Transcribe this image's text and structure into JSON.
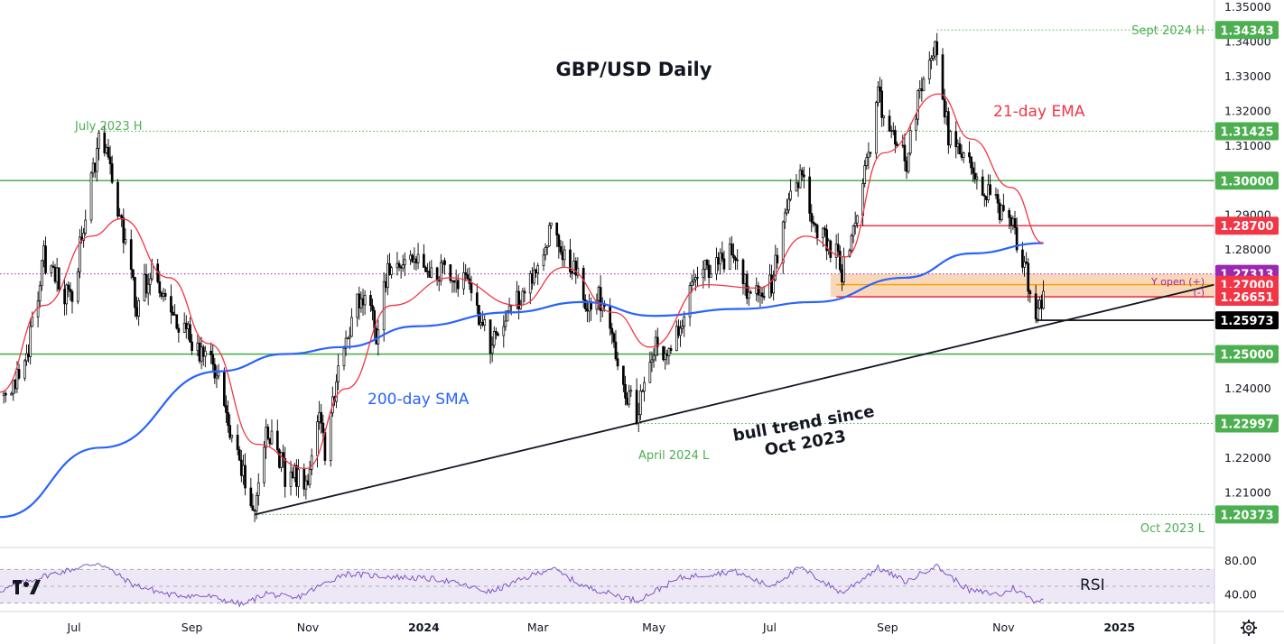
{
  "chart_data": {
    "type": "candlestick",
    "title": "GBP/USD Daily",
    "ylim": [
      1.195,
      1.35
    ],
    "y_ticks": [
      {
        "value": 1.35,
        "label": "1.35000"
      },
      {
        "value": 1.34,
        "label": "1.34000"
      },
      {
        "value": 1.33,
        "label": "1.33000"
      },
      {
        "value": 1.32,
        "label": "1.32000"
      },
      {
        "value": 1.31,
        "label": "1.31000"
      },
      {
        "value": 1.29,
        "label": "1.29000"
      },
      {
        "value": 1.28,
        "label": "1.28000"
      },
      {
        "value": 1.24,
        "label": "1.24000"
      },
      {
        "value": 1.22,
        "label": "1.22000"
      },
      {
        "value": 1.21,
        "label": "1.21000"
      }
    ],
    "x_ticks": [
      {
        "date": "2023-07-01",
        "label": "Jul",
        "bold": false
      },
      {
        "date": "2023-09-01",
        "label": "Sep",
        "bold": false
      },
      {
        "date": "2023-11-01",
        "label": "Nov",
        "bold": false
      },
      {
        "date": "2024-01-01",
        "label": "2024",
        "bold": true
      },
      {
        "date": "2024-03-01",
        "label": "Mar",
        "bold": false
      },
      {
        "date": "2024-05-01",
        "label": "May",
        "bold": false
      },
      {
        "date": "2024-07-01",
        "label": "Jul",
        "bold": false
      },
      {
        "date": "2024-09-01",
        "label": "Sep",
        "bold": false
      },
      {
        "date": "2024-11-01",
        "label": "Nov",
        "bold": false
      },
      {
        "date": "2025-01-01",
        "label": "2025",
        "bold": true
      }
    ],
    "x_range": [
      "2023-05-23",
      "2025-02-20"
    ],
    "key_points": [
      {
        "date": "2023-05-25",
        "close": 1.238
      },
      {
        "date": "2023-06-05",
        "close": 1.246
      },
      {
        "date": "2023-06-15",
        "close": 1.278
      },
      {
        "date": "2023-06-29",
        "close": 1.265
      },
      {
        "date": "2023-07-14",
        "close": 1.311
      },
      {
        "date": "2023-07-18",
        "close": 1.309
      },
      {
        "date": "2023-07-27",
        "close": 1.283
      },
      {
        "date": "2023-08-03",
        "close": 1.264
      },
      {
        "date": "2023-08-10",
        "close": 1.274
      },
      {
        "date": "2023-08-25",
        "close": 1.259
      },
      {
        "date": "2023-09-07",
        "close": 1.249
      },
      {
        "date": "2023-09-14",
        "close": 1.245
      },
      {
        "date": "2023-09-25",
        "close": 1.219
      },
      {
        "date": "2023-10-04",
        "close": 1.206
      },
      {
        "date": "2023-10-11",
        "close": 1.229
      },
      {
        "date": "2023-10-20",
        "close": 1.215
      },
      {
        "date": "2023-11-01",
        "close": 1.214
      },
      {
        "date": "2023-11-07",
        "close": 1.23
      },
      {
        "date": "2023-11-10",
        "close": 1.222
      },
      {
        "date": "2023-11-16",
        "close": 1.242
      },
      {
        "date": "2023-11-29",
        "close": 1.269
      },
      {
        "date": "2023-12-07",
        "close": 1.256
      },
      {
        "date": "2023-12-14",
        "close": 1.276
      },
      {
        "date": "2023-12-28",
        "close": 1.278
      },
      {
        "date": "2024-01-10",
        "close": 1.274
      },
      {
        "date": "2024-01-23",
        "close": 1.27
      },
      {
        "date": "2024-02-05",
        "close": 1.253
      },
      {
        "date": "2024-02-22",
        "close": 1.268
      },
      {
        "date": "2024-03-08",
        "close": 1.285
      },
      {
        "date": "2024-03-20",
        "close": 1.274
      },
      {
        "date": "2024-03-27",
        "close": 1.264
      },
      {
        "date": "2024-04-04",
        "close": 1.266
      },
      {
        "date": "2024-04-12",
        "close": 1.245
      },
      {
        "date": "2024-04-22",
        "close": 1.233
      },
      {
        "date": "2024-05-01",
        "close": 1.252
      },
      {
        "date": "2024-05-10",
        "close": 1.252
      },
      {
        "date": "2024-05-24",
        "close": 1.274
      },
      {
        "date": "2024-06-12",
        "close": 1.279
      },
      {
        "date": "2024-06-21",
        "close": 1.266
      },
      {
        "date": "2024-07-02",
        "close": 1.27
      },
      {
        "date": "2024-07-12",
        "close": 1.298
      },
      {
        "date": "2024-07-17",
        "close": 1.302
      },
      {
        "date": "2024-07-25",
        "close": 1.288
      },
      {
        "date": "2024-08-05",
        "close": 1.278
      },
      {
        "date": "2024-08-08",
        "close": 1.272
      },
      {
        "date": "2024-08-21",
        "close": 1.305
      },
      {
        "date": "2024-08-27",
        "close": 1.324
      },
      {
        "date": "2024-09-06",
        "close": 1.313
      },
      {
        "date": "2024-09-11",
        "close": 1.305
      },
      {
        "date": "2024-09-20",
        "close": 1.332
      },
      {
        "date": "2024-09-26",
        "close": 1.341
      },
      {
        "date": "2024-10-03",
        "close": 1.313
      },
      {
        "date": "2024-10-14",
        "close": 1.306
      },
      {
        "date": "2024-10-22",
        "close": 1.297
      },
      {
        "date": "2024-10-31",
        "close": 1.29
      },
      {
        "date": "2024-11-06",
        "close": 1.288
      },
      {
        "date": "2024-11-12",
        "close": 1.275
      },
      {
        "date": "2024-11-18",
        "close": 1.262
      },
      {
        "date": "2024-11-22",
        "close": 1.266
      }
    ],
    "ema21": [
      {
        "date": "2023-05-23",
        "value": 1.239
      },
      {
        "date": "2023-06-15",
        "value": 1.264
      },
      {
        "date": "2023-07-10",
        "value": 1.284
      },
      {
        "date": "2023-07-26",
        "value": 1.289
      },
      {
        "date": "2023-08-20",
        "value": 1.272
      },
      {
        "date": "2023-09-10",
        "value": 1.253
      },
      {
        "date": "2023-10-05",
        "value": 1.224
      },
      {
        "date": "2023-10-31",
        "value": 1.217
      },
      {
        "date": "2023-11-21",
        "value": 1.24
      },
      {
        "date": "2023-12-15",
        "value": 1.264
      },
      {
        "date": "2024-01-15",
        "value": 1.272
      },
      {
        "date": "2024-02-20",
        "value": 1.264
      },
      {
        "date": "2024-03-15",
        "value": 1.275
      },
      {
        "date": "2024-04-10",
        "value": 1.262
      },
      {
        "date": "2024-04-29",
        "value": 1.252
      },
      {
        "date": "2024-05-28",
        "value": 1.27
      },
      {
        "date": "2024-06-25",
        "value": 1.269
      },
      {
        "date": "2024-07-20",
        "value": 1.284
      },
      {
        "date": "2024-08-10",
        "value": 1.278
      },
      {
        "date": "2024-08-30",
        "value": 1.308
      },
      {
        "date": "2024-09-28",
        "value": 1.325
      },
      {
        "date": "2024-10-15",
        "value": 1.312
      },
      {
        "date": "2024-11-05",
        "value": 1.298
      },
      {
        "date": "2024-11-22",
        "value": 1.282
      }
    ],
    "sma200": [
      {
        "date": "2023-05-23",
        "value": 1.203
      },
      {
        "date": "2023-07-15",
        "value": 1.223
      },
      {
        "date": "2023-09-15",
        "value": 1.245
      },
      {
        "date": "2023-10-20",
        "value": 1.25
      },
      {
        "date": "2023-11-20",
        "value": 1.252
      },
      {
        "date": "2023-12-28",
        "value": 1.258
      },
      {
        "date": "2024-02-15",
        "value": 1.262
      },
      {
        "date": "2024-03-25",
        "value": 1.265
      },
      {
        "date": "2024-05-01",
        "value": 1.261
      },
      {
        "date": "2024-06-15",
        "value": 1.263
      },
      {
        "date": "2024-07-25",
        "value": 1.265
      },
      {
        "date": "2024-09-10",
        "value": 1.272
      },
      {
        "date": "2024-10-15",
        "value": 1.279
      },
      {
        "date": "2024-11-22",
        "value": 1.282
      }
    ],
    "horizontal_levels": [
      {
        "value": 1.34343,
        "label": "1.34343",
        "style": "dotted",
        "color": "#4caf50",
        "start_date": "2024-09-27",
        "badge_color": "#4caf50"
      },
      {
        "value": 1.31425,
        "label": "1.31425",
        "style": "dotted",
        "color": "#4caf50",
        "start_date": "2023-07-14",
        "badge_color": "#4caf50"
      },
      {
        "value": 1.3,
        "label": "1.30000",
        "style": "solid",
        "color": "#4caf50",
        "start_date": "2023-05-23",
        "badge_color": "#4caf50"
      },
      {
        "value": 1.287,
        "label": "1.28700",
        "style": "solid",
        "color": "#f23645",
        "start_date": "2024-08-15",
        "badge_color": "#f23645"
      },
      {
        "value": 1.27313,
        "label": "1.27313",
        "style": "dotted",
        "color": "#9c27b0",
        "start_date": "2023-05-23",
        "badge_color": "#9c27b0"
      },
      {
        "value": 1.27,
        "label": "1.27000",
        "style": "solid",
        "color": "#f7a600",
        "start_date": "2024-08-05",
        "badge_color": "#f23645"
      },
      {
        "value": 1.26651,
        "label": "1.26651",
        "style": "solid",
        "color": "#f23645",
        "start_date": "2024-08-05",
        "badge_color": "#f23645"
      },
      {
        "value": 1.25973,
        "label": "1.25973",
        "style": "solid",
        "color": "#000000",
        "start_date": "2024-11-18",
        "badge_color": "#000000"
      },
      {
        "value": 1.25,
        "label": "1.25000",
        "style": "solid",
        "color": "#4caf50",
        "start_date": "2023-05-23",
        "badge_color": "#4caf50"
      },
      {
        "value": 1.22997,
        "label": "1.22997",
        "style": "dotted",
        "color": "#4caf50",
        "start_date": "2024-04-22",
        "badge_color": "#4caf50"
      },
      {
        "value": 1.20373,
        "label": "1.20373",
        "style": "dotted",
        "color": "#4caf50",
        "start_date": "2023-10-04",
        "badge_color": "#4caf50"
      }
    ],
    "zone": {
      "from": 1.2665,
      "to": 1.2731,
      "start_date": "2024-08-02",
      "color": "#f7c9a1"
    },
    "trendline": {
      "start": {
        "date": "2023-10-04",
        "value": 1.2037
      },
      "end": {
        "date": "2025-02-20",
        "value": 1.27
      }
    },
    "rsi": {
      "label": "RSI",
      "ylim": [
        20,
        95
      ],
      "ticks": [
        {
          "value": 80,
          "label": "80.00"
        },
        {
          "value": 40,
          "label": "40.00"
        }
      ],
      "band": [
        30,
        70
      ],
      "mid": 50,
      "values": [
        {
          "date": "2023-05-23",
          "value": 45
        },
        {
          "date": "2023-06-15",
          "value": 62
        },
        {
          "date": "2023-07-14",
          "value": 78
        },
        {
          "date": "2023-08-01",
          "value": 52
        },
        {
          "date": "2023-08-20",
          "value": 40
        },
        {
          "date": "2023-09-10",
          "value": 38
        },
        {
          "date": "2023-09-28",
          "value": 28
        },
        {
          "date": "2023-10-10",
          "value": 42
        },
        {
          "date": "2023-10-25",
          "value": 35
        },
        {
          "date": "2023-11-20",
          "value": 65
        },
        {
          "date": "2023-12-10",
          "value": 62
        },
        {
          "date": "2024-01-10",
          "value": 58
        },
        {
          "date": "2024-02-05",
          "value": 43
        },
        {
          "date": "2024-03-08",
          "value": 72
        },
        {
          "date": "2024-03-25",
          "value": 50
        },
        {
          "date": "2024-04-22",
          "value": 33
        },
        {
          "date": "2024-05-15",
          "value": 60
        },
        {
          "date": "2024-06-12",
          "value": 68
        },
        {
          "date": "2024-07-01",
          "value": 50
        },
        {
          "date": "2024-07-17",
          "value": 72
        },
        {
          "date": "2024-08-08",
          "value": 42
        },
        {
          "date": "2024-08-27",
          "value": 72
        },
        {
          "date": "2024-09-11",
          "value": 55
        },
        {
          "date": "2024-09-26",
          "value": 75
        },
        {
          "date": "2024-10-14",
          "value": 45
        },
        {
          "date": "2024-10-31",
          "value": 40
        },
        {
          "date": "2024-11-06",
          "value": 48
        },
        {
          "date": "2024-11-18",
          "value": 32
        },
        {
          "date": "2024-11-22",
          "value": 36
        }
      ]
    },
    "annotations": [
      {
        "text": "Sept 2024 H",
        "color": "#4caf50"
      },
      {
        "text": "July 2023 H",
        "color": "#4caf50"
      },
      {
        "text": "21-day EMA",
        "color": "#f23645"
      },
      {
        "text": "200-day SMA",
        "color": "#2962ff"
      },
      {
        "text": "bull trend since",
        "color": "#131722"
      },
      {
        "text": "Oct 2023",
        "color": "#131722"
      },
      {
        "text": "April 2024 L",
        "color": "#4caf50"
      },
      {
        "text": "Oct 2023 L",
        "color": "#4caf50"
      },
      {
        "text": "Y open (+)",
        "color": "#9c27b0"
      },
      {
        "text": "(-)",
        "color": "#9c27b0"
      }
    ],
    "colors": {
      "candle": "#000000",
      "ema": "#f23645",
      "sma": "#2962ff",
      "rsi": "#7e57c2",
      "rsi_band": "#ede7f6"
    }
  },
  "ui": {
    "settings_icon": "gear-icon",
    "logo_text": "TV"
  }
}
